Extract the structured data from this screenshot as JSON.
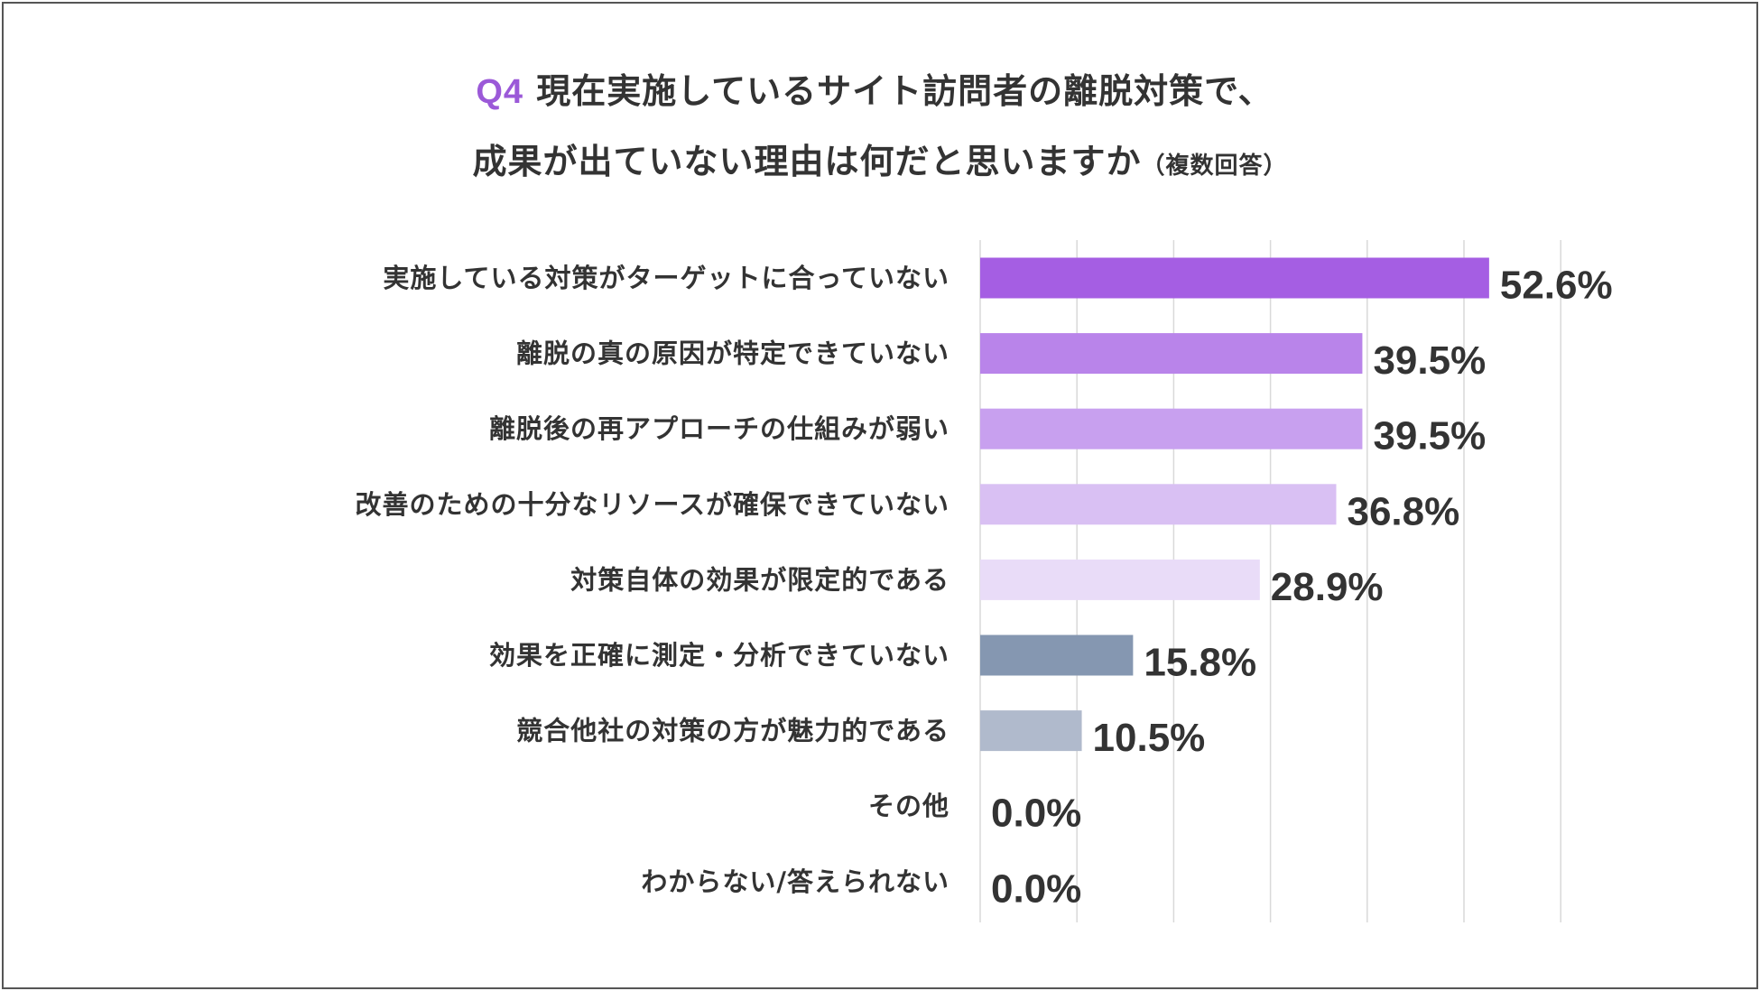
{
  "title": {
    "prefix": "Q4",
    "line1": "現在実施しているサイト訪問者の離脱対策で、",
    "line2": "成果が出ていない理由は何だと思いますか",
    "note": "（複数回答）"
  },
  "chart_data": {
    "type": "bar",
    "orientation": "horizontal",
    "title": "Q4 現在実施しているサイト訪問者の離脱対策で、成果が出ていない理由は何だと思いますか（複数回答）",
    "categories": [
      "実施している対策がターゲットに合っていない",
      "離脱の真の原因が特定できていない",
      "離脱後の再アプローチの仕組みが弱い",
      "改善のための十分なリソースが確保できていない",
      "対策自体の効果が限定的である",
      "効果を正確に測定・分析できていない",
      "競合他社の対策の方が魅力的である",
      "その他",
      "わからない/答えられない"
    ],
    "values": [
      52.6,
      39.5,
      39.5,
      36.8,
      28.9,
      15.8,
      10.5,
      0.0,
      0.0
    ],
    "value_labels": [
      "52.6%",
      "39.5%",
      "39.5%",
      "36.8%",
      "28.9%",
      "15.8%",
      "10.5%",
      "0.0%",
      "0.0%"
    ],
    "colors": [
      "#a55ee3",
      "#b984ea",
      "#c8a0ef",
      "#d9c0f3",
      "#e9dcf8",
      "#8597b1",
      "#b0bacc",
      "#b0bacc",
      "#b0bacc"
    ],
    "xlim": [
      0,
      60
    ],
    "grid": true,
    "gridline_color": "#d9d9d9",
    "xlabel": "",
    "ylabel": ""
  }
}
